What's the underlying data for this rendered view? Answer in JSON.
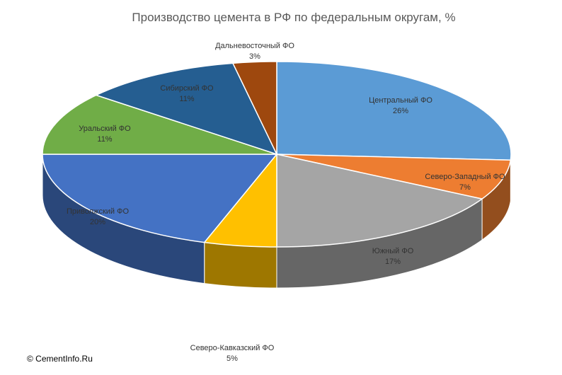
{
  "chart_data": {
    "type": "pie",
    "title": "Производство цемента в РФ по федеральным округам, %",
    "slices": [
      {
        "label": "Центральный ФО",
        "value": 26,
        "value_label": "26%",
        "color": "#5b9bd5"
      },
      {
        "label": "Северо-Западный ФО",
        "value": 7,
        "value_label": "7%",
        "color": "#ed7d31"
      },
      {
        "label": "Южный ФО",
        "value": 17,
        "value_label": "17%",
        "color": "#a5a5a5"
      },
      {
        "label": "Северо-Кавказский ФО",
        "value": 5,
        "value_label": "5%",
        "color": "#ffc000"
      },
      {
        "label": "Приволжский ФО",
        "value": 20,
        "value_label": "20%",
        "color": "#4472c4"
      },
      {
        "label": "Уральский ФО",
        "value": 11,
        "value_label": "11%",
        "color": "#70ad47"
      },
      {
        "label": "Сибирский ФО",
        "value": 11,
        "value_label": "11%",
        "color": "#255e91"
      },
      {
        "label": "Дальневосточный ФО",
        "value": 3,
        "value_label": "3%",
        "color": "#9e480e"
      }
    ],
    "legend": "none",
    "style": "3d-pie"
  },
  "footer": {
    "copyright": "© CementInfo.Ru"
  }
}
